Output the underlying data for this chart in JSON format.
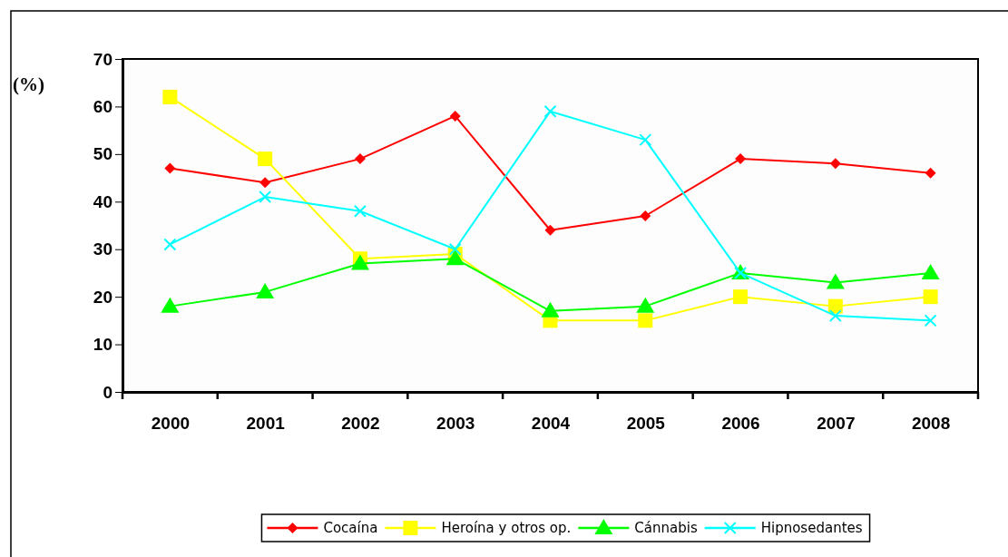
{
  "chart_data": {
    "type": "line",
    "ylabel": "(%)",
    "categories": [
      "2000",
      "2001",
      "2002",
      "2003",
      "2004",
      "2005",
      "2006",
      "2007",
      "2008"
    ],
    "ylim": [
      0,
      70
    ],
    "yticks": [
      0,
      10,
      20,
      30,
      40,
      50,
      60,
      70
    ],
    "grid": false,
    "legend": "bottom",
    "series": [
      {
        "name": "Cocaína",
        "color": "#ff0000",
        "marker": "diamond",
        "values": [
          47,
          44,
          49,
          58,
          34,
          37,
          49,
          48,
          46
        ]
      },
      {
        "name": "Heroína y otros op.",
        "color": "#ffff00",
        "marker": "square",
        "values": [
          62,
          49,
          28,
          29,
          15,
          15,
          20,
          18,
          20
        ]
      },
      {
        "name": "Cánnabis",
        "color": "#00ff00",
        "marker": "triangle",
        "values": [
          18,
          21,
          27,
          28,
          17,
          18,
          25,
          23,
          25
        ]
      },
      {
        "name": "Hipnosedantes",
        "color": "#00ffff",
        "marker": "cross",
        "values": [
          31,
          41,
          38,
          30,
          59,
          53,
          25,
          16,
          15
        ]
      }
    ]
  }
}
